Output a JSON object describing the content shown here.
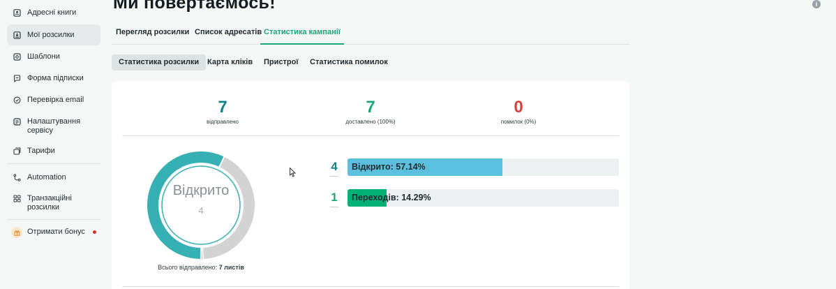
{
  "sidebar": {
    "items": [
      {
        "label": "Адресні книги",
        "icon": "address-book-icon"
      },
      {
        "label": "Мої розсилки",
        "icon": "mailing-icon",
        "active": true
      },
      {
        "label": "Шаблони",
        "icon": "templates-icon"
      },
      {
        "label": "Форма підписки",
        "icon": "form-icon"
      },
      {
        "label": "Перевірка email",
        "icon": "check-circle-icon"
      },
      {
        "label": "Налаштування сервісу",
        "icon": "settings-icon"
      },
      {
        "label": "Тарифи",
        "icon": "tariffs-icon"
      },
      {
        "label": "Automation",
        "icon": "automation-icon"
      },
      {
        "label": "Транзакційні розсилки",
        "icon": "grid-icon"
      },
      {
        "label": "Отримати бонус",
        "icon": "gift-icon"
      }
    ]
  },
  "header": {
    "title": "Ми повертаємось!"
  },
  "tabs": [
    {
      "label": "Перегляд розсилки"
    },
    {
      "label": "Список адресатів"
    },
    {
      "label": "Статистика кампанії",
      "active": true
    }
  ],
  "subtabs": [
    {
      "label": "Статистика розсилки",
      "active": true
    },
    {
      "label": "Карта кліків"
    },
    {
      "label": "Пристрої"
    },
    {
      "label": "Статистика помилок"
    }
  ],
  "stats": {
    "sent": {
      "value": "7",
      "label": "відправлено",
      "color": "#177f85"
    },
    "delivered": {
      "value": "7",
      "label": "доставлено (100%)",
      "color": "#1aa67a"
    },
    "errors": {
      "value": "0",
      "label": "помилок (0%)",
      "color": "#d9423d"
    }
  },
  "donut": {
    "label": "Відкрито",
    "value": "4",
    "opened_fraction": 0.5714,
    "colors": {
      "opened": "#37b0b3",
      "rest": "#d3d3d3",
      "marker": "#e06060"
    }
  },
  "total": {
    "prefix": "Всього відправлено:",
    "value": "7 листів"
  },
  "bars": [
    {
      "count": "4",
      "text": "Відкрито: 57.14%",
      "fraction": 0.5714,
      "color": "#5bc0de",
      "count_color": "#177f85"
    },
    {
      "count": "1",
      "text": "Переходів: 14.29%",
      "fraction": 0.1429,
      "color": "#00b074",
      "count_color": "#1aa67a"
    }
  ]
}
